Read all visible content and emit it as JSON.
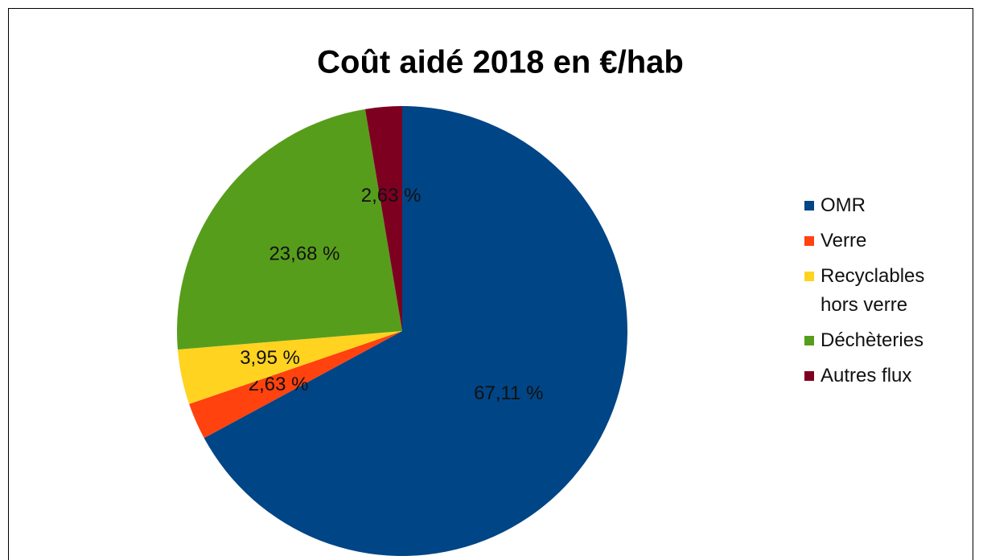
{
  "chart_data": {
    "type": "pie",
    "title": "Coût aidé 2018 en €/hab",
    "categories": [
      "OMR",
      "Verre",
      "Recyclables hors verre",
      "Déchèteries",
      "Autres flux"
    ],
    "values": [
      67.11,
      2.63,
      3.95,
      23.68,
      2.63
    ],
    "value_labels": [
      "67,11 %",
      "2,63 %",
      "3,95 %",
      "23,68 %",
      "2,63 %"
    ],
    "colors": [
      "#004586",
      "#ff420e",
      "#ffd320",
      "#579d1c",
      "#7e0021"
    ],
    "legend": "right"
  }
}
